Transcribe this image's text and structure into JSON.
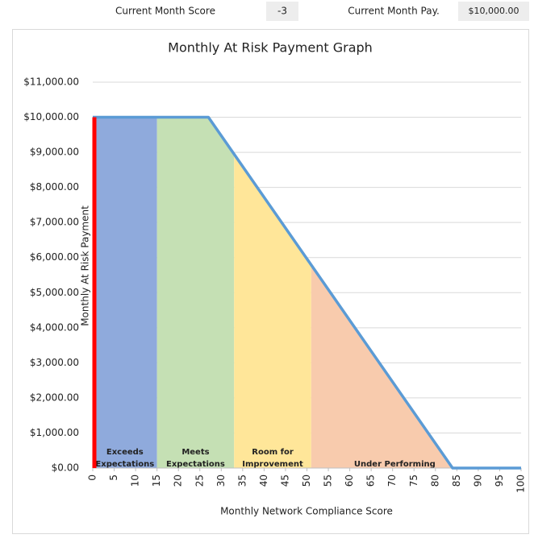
{
  "header": {
    "score_label": "Current Month Score",
    "score_value": "-3",
    "pay_label": "Current Month Pay.",
    "pay_value": "$10,000.00"
  },
  "chart_data": {
    "type": "line",
    "title": "Monthly At Risk Payment Graph",
    "x_label": "Monthly Network Compliance Score",
    "y_label": "Monthly At Risk Payment",
    "series": [
      {
        "x": [
          0,
          27,
          84,
          100
        ],
        "values": [
          10000,
          10000,
          0,
          0
        ],
        "color": "#5b9bd5"
      }
    ],
    "marker": {
      "x": 0,
      "y": 10000,
      "color": "#ff0000"
    },
    "zones": [
      {
        "label": [
          "Exceeds",
          "Expectations"
        ],
        "from": 0,
        "to": 15,
        "color": "#8faadc"
      },
      {
        "label": [
          "Meets",
          "Expectations"
        ],
        "from": 15,
        "to": 33,
        "color": "#c5e0b4"
      },
      {
        "label": [
          "Room for",
          "Improvement"
        ],
        "from": 33,
        "to": 51,
        "color": "#ffe699"
      },
      {
        "label": [
          "Under Performing"
        ],
        "from": 51,
        "to": 90,
        "color": "#f8cbad"
      }
    ],
    "xlim": [
      0,
      100
    ],
    "xticks": [
      0,
      5,
      10,
      15,
      20,
      25,
      30,
      35,
      40,
      45,
      50,
      55,
      60,
      65,
      70,
      75,
      80,
      85,
      90,
      95,
      100
    ],
    "ylim": [
      0,
      11000
    ],
    "yticks": [
      {
        "value": 0,
        "label": "$0.00"
      },
      {
        "value": 1000,
        "label": "$1,000.00"
      },
      {
        "value": 2000,
        "label": "$2,000.00"
      },
      {
        "value": 3000,
        "label": "$3,000.00"
      },
      {
        "value": 4000,
        "label": "$4,000.00"
      },
      {
        "value": 5000,
        "label": "$5,000.00"
      },
      {
        "value": 6000,
        "label": "$6,000.00"
      },
      {
        "value": 7000,
        "label": "$7,000.00"
      },
      {
        "value": 8000,
        "label": "$8,000.00"
      },
      {
        "value": 9000,
        "label": "$9,000.00"
      },
      {
        "value": 10000,
        "label": "$10,000.00"
      },
      {
        "value": 11000,
        "label": "$11,000.00"
      }
    ],
    "grid": true
  }
}
